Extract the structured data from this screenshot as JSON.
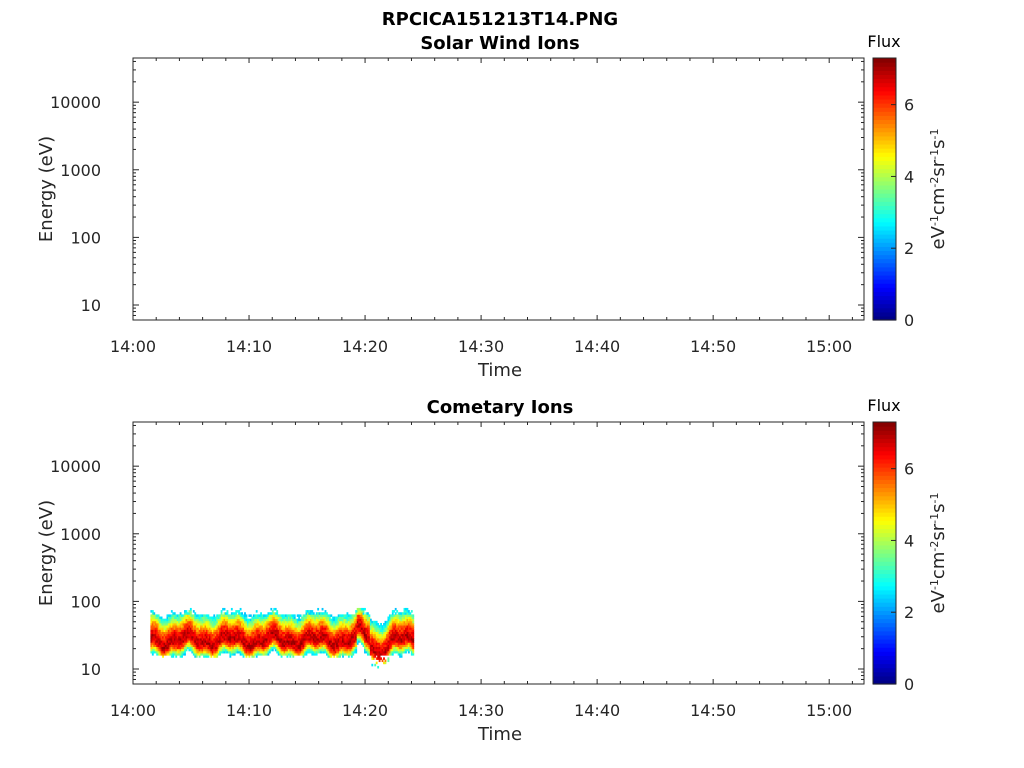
{
  "figure_title": "RPCICA151213T14.PNG",
  "chart_data": [
    {
      "type": "heatmap",
      "title": "Solar Wind Ions",
      "xlabel": "Time",
      "ylabel": "Energy (eV)",
      "x_tick_labels": [
        "14:00",
        "14:10",
        "14:20",
        "14:30",
        "14:40",
        "14:50",
        "15:00"
      ],
      "xlim_minutes": [
        0,
        63
      ],
      "y_scale": "log",
      "y_tick_labels": [
        "10",
        "100",
        "1000",
        "10000"
      ],
      "y_tick_values": [
        10,
        100,
        1000,
        10000
      ],
      "ylim": [
        6,
        45000
      ],
      "colorbar": {
        "title": "Flux",
        "label": "eV-1cm-2sr-1s-1",
        "tick_labels": [
          "0",
          "2",
          "4",
          "6"
        ],
        "range": [
          0,
          7.3
        ],
        "colormap": "jet"
      },
      "data": []
    },
    {
      "type": "heatmap",
      "title": "Cometary Ions",
      "xlabel": "Time",
      "ylabel": "Energy (eV)",
      "x_tick_labels": [
        "14:00",
        "14:10",
        "14:20",
        "14:30",
        "14:40",
        "14:50",
        "15:00"
      ],
      "xlim_minutes": [
        0,
        63
      ],
      "y_scale": "log",
      "y_tick_labels": [
        "10",
        "100",
        "1000",
        "10000"
      ],
      "y_tick_values": [
        10,
        100,
        1000,
        10000
      ],
      "ylim": [
        6,
        45000
      ],
      "colorbar": {
        "title": "Flux",
        "label": "eV-1cm-2sr-1s-1",
        "tick_labels": [
          "0",
          "2",
          "4",
          "6"
        ],
        "range": [
          0,
          7.3
        ],
        "colormap": "jet"
      },
      "data": {
        "time_range_minutes": [
          1.5,
          24.2
        ],
        "energy_range_eV": [
          16,
          80
        ],
        "peak_energy_eV": 25,
        "peak_flux": 6.8,
        "dip_time_minutes": 21,
        "dip_energy_eV": 11
      }
    }
  ]
}
